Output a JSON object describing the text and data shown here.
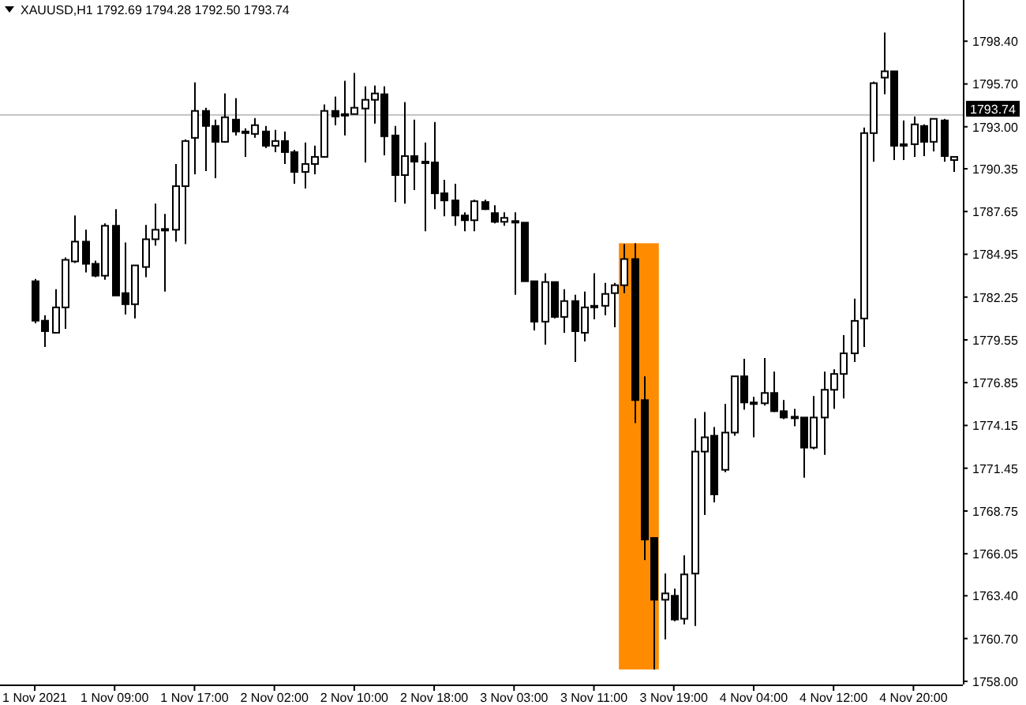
{
  "chart_data": {
    "type": "candlestick",
    "title": "XAUUSD,H1  1792.69 1794.28 1792.50 1793.74",
    "categories": [
      "1 Nov 2021",
      null,
      null,
      null,
      null,
      null,
      null,
      null,
      "1 Nov 09:00",
      null,
      null,
      null,
      null,
      null,
      null,
      null,
      "1 Nov 17:00",
      null,
      null,
      null,
      null,
      null,
      null,
      null,
      "2 Nov 02:00",
      null,
      null,
      null,
      null,
      null,
      null,
      null,
      "2 Nov 10:00",
      null,
      null,
      null,
      null,
      null,
      null,
      null,
      "2 Nov 18:00",
      null,
      null,
      null,
      null,
      null,
      null,
      null,
      "3 Nov 03:00",
      null,
      null,
      null,
      null,
      null,
      null,
      null,
      "3 Nov 11:00",
      null,
      null,
      null,
      null,
      null,
      null,
      null,
      "3 Nov 19:00",
      null,
      null,
      null,
      null,
      null,
      null,
      null,
      "4 Nov 04:00",
      null,
      null,
      null,
      null,
      null,
      null,
      null,
      "4 Nov 12:00",
      null,
      null,
      null,
      null,
      null,
      null,
      null,
      "4 Nov 20:00",
      null,
      null,
      null,
      null
    ],
    "ohlc": [
      [
        1783.25,
        1783.4,
        1780.6,
        1780.76
      ],
      [
        1780.76,
        1781.1,
        1779.1,
        1780.1
      ],
      [
        1780.0,
        1782.75,
        1780.0,
        1781.6
      ],
      [
        1781.6,
        1784.75,
        1780.25,
        1784.6
      ],
      [
        1784.5,
        1787.4,
        1784.4,
        1785.75
      ],
      [
        1785.75,
        1786.5,
        1783.8,
        1784.35
      ],
      [
        1784.35,
        1784.55,
        1783.5,
        1783.6
      ],
      [
        1783.6,
        1786.9,
        1783.35,
        1786.75
      ],
      [
        1786.75,
        1787.8,
        1782.35,
        1782.35
      ],
      [
        1782.5,
        1785.7,
        1781.15,
        1781.8
      ],
      [
        1781.8,
        1784.25,
        1780.9,
        1784.25
      ],
      [
        1784.15,
        1786.8,
        1783.5,
        1785.9
      ],
      [
        1785.9,
        1788.15,
        1785.5,
        1786.5
      ],
      [
        1786.55,
        1787.5,
        1782.6,
        1786.55
      ],
      [
        1786.5,
        1790.65,
        1785.75,
        1789.25
      ],
      [
        1789.25,
        1792.2,
        1785.6,
        1792.1
      ],
      [
        1792.3,
        1795.8,
        1790.0,
        1794.0
      ],
      [
        1794.0,
        1794.2,
        1790.2,
        1793.05
      ],
      [
        1793.05,
        1793.45,
        1789.75,
        1792.05
      ],
      [
        1792.05,
        1795.1,
        1792.0,
        1793.6
      ],
      [
        1793.45,
        1794.8,
        1792.45,
        1792.7
      ],
      [
        1792.7,
        1792.9,
        1791.1,
        1792.7
      ],
      [
        1792.55,
        1793.55,
        1792.3,
        1793.1
      ],
      [
        1792.7,
        1793.05,
        1791.65,
        1791.8
      ],
      [
        1791.8,
        1792.8,
        1791.4,
        1792.1
      ],
      [
        1792.1,
        1792.7,
        1790.65,
        1791.4
      ],
      [
        1791.4,
        1791.55,
        1789.4,
        1790.15
      ],
      [
        1790.15,
        1792.0,
        1789.1,
        1790.65
      ],
      [
        1790.65,
        1791.8,
        1790.0,
        1791.1
      ],
      [
        1791.1,
        1794.4,
        1791.05,
        1794.0
      ],
      [
        1794.0,
        1794.9,
        1793.1,
        1793.65
      ],
      [
        1793.8,
        1795.9,
        1792.45,
        1793.8
      ],
      [
        1793.8,
        1796.4,
        1793.8,
        1794.2
      ],
      [
        1794.15,
        1795.55,
        1790.75,
        1794.7
      ],
      [
        1794.7,
        1795.6,
        1793.2,
        1795.1
      ],
      [
        1795.05,
        1795.55,
        1791.2,
        1792.4
      ],
      [
        1792.45,
        1793.05,
        1788.25,
        1789.95
      ],
      [
        1789.95,
        1794.55,
        1788.15,
        1791.15
      ],
      [
        1791.15,
        1793.45,
        1789.0,
        1790.8
      ],
      [
        1790.8,
        1792.0,
        1786.4,
        1790.8
      ],
      [
        1790.75,
        1793.3,
        1787.8,
        1788.8
      ],
      [
        1788.8,
        1789.65,
        1787.35,
        1788.35
      ],
      [
        1788.35,
        1789.4,
        1786.75,
        1787.4
      ],
      [
        1787.4,
        1787.6,
        1786.4,
        1787.1
      ],
      [
        1787.1,
        1788.4,
        1786.4,
        1788.3
      ],
      [
        1788.25,
        1788.4,
        1787.75,
        1787.8
      ],
      [
        1787.55,
        1788.05,
        1786.9,
        1787.0
      ],
      [
        1787.0,
        1787.6,
        1786.75,
        1787.25
      ],
      [
        1787.05,
        1787.6,
        1782.4,
        1787.05
      ],
      [
        1786.95,
        1786.95,
        1783.25,
        1783.25
      ],
      [
        1783.25,
        1783.25,
        1780.15,
        1780.7
      ],
      [
        1780.7,
        1783.75,
        1779.25,
        1783.2
      ],
      [
        1783.2,
        1783.2,
        1780.9,
        1781.0
      ],
      [
        1781.0,
        1782.75,
        1780.0,
        1782.0
      ],
      [
        1782.0,
        1782.4,
        1778.15,
        1780.1
      ],
      [
        1780.0,
        1782.6,
        1779.45,
        1781.6
      ],
      [
        1781.7,
        1783.75,
        1780.85,
        1781.7
      ],
      [
        1781.7,
        1783.15,
        1781.1,
        1782.45
      ],
      [
        1782.5,
        1783.15,
        1780.35,
        1783.0
      ],
      [
        1783.0,
        1785.6,
        1782.5,
        1784.65
      ],
      [
        1784.65,
        1785.65,
        1774.3,
        1775.75
      ],
      [
        1775.75,
        1777.25,
        1765.65,
        1766.95
      ],
      [
        1767.05,
        1767.05,
        1758.75,
        1763.15
      ],
      [
        1763.15,
        1764.8,
        1760.65,
        1763.55
      ],
      [
        1763.4,
        1763.85,
        1761.8,
        1761.9
      ],
      [
        1761.95,
        1765.95,
        1761.6,
        1764.75
      ],
      [
        1764.8,
        1774.6,
        1761.5,
        1772.5
      ],
      [
        1772.5,
        1775.0,
        1768.5,
        1773.4
      ],
      [
        1773.5,
        1774.05,
        1769.3,
        1769.8
      ],
      [
        1771.35,
        1775.5,
        1771.2,
        1773.7
      ],
      [
        1773.7,
        1777.25,
        1773.5,
        1777.25
      ],
      [
        1777.25,
        1778.35,
        1775.15,
        1775.6
      ],
      [
        1775.6,
        1775.95,
        1773.4,
        1775.6
      ],
      [
        1775.55,
        1778.4,
        1775.4,
        1776.2
      ],
      [
        1776.2,
        1777.55,
        1775.0,
        1775.05
      ],
      [
        1775.05,
        1775.75,
        1774.55,
        1774.65
      ],
      [
        1774.7,
        1775.2,
        1774.1,
        1774.7
      ],
      [
        1774.65,
        1774.65,
        1770.85,
        1772.75
      ],
      [
        1772.75,
        1776.0,
        1772.65,
        1774.65
      ],
      [
        1774.65,
        1777.55,
        1772.3,
        1776.4
      ],
      [
        1776.4,
        1777.7,
        1775.2,
        1777.4
      ],
      [
        1777.4,
        1779.85,
        1775.85,
        1778.7
      ],
      [
        1778.7,
        1782.15,
        1778.15,
        1780.75
      ],
      [
        1780.9,
        1792.95,
        1779.1,
        1792.6
      ],
      [
        1792.6,
        1795.85,
        1790.8,
        1795.75
      ],
      [
        1796.1,
        1798.95,
        1795.05,
        1796.5
      ],
      [
        1796.5,
        1796.5,
        1790.9,
        1791.8
      ],
      [
        1791.9,
        1793.4,
        1790.9,
        1791.9
      ],
      [
        1791.9,
        1793.65,
        1791.1,
        1793.15
      ],
      [
        1793.05,
        1793.15,
        1791.15,
        1792.05
      ],
      [
        1792.05,
        1793.5,
        1791.45,
        1793.5
      ],
      [
        1793.4,
        1793.5,
        1790.8,
        1791.15
      ],
      [
        1790.9,
        1791.15,
        1790.15,
        1791.1
      ]
    ],
    "ylim": [
      1757.8,
      1801.0
    ],
    "yticks": [
      {
        "value": 1798.4,
        "label": "1798.40"
      },
      {
        "value": 1795.7,
        "label": "1795.70"
      },
      {
        "value": 1793.0,
        "label": "1793.00"
      },
      {
        "value": 1790.35,
        "label": "1790.35"
      },
      {
        "value": 1787.65,
        "label": "1787.65"
      },
      {
        "value": 1784.95,
        "label": "1784.95"
      },
      {
        "value": 1782.25,
        "label": "1782.25"
      },
      {
        "value": 1779.55,
        "label": "1779.55"
      },
      {
        "value": 1776.85,
        "label": "1776.85"
      },
      {
        "value": 1774.15,
        "label": "1774.15"
      },
      {
        "value": 1771.45,
        "label": "1771.45"
      },
      {
        "value": 1768.75,
        "label": "1768.75"
      },
      {
        "value": 1766.05,
        "label": "1766.05"
      },
      {
        "value": 1763.4,
        "label": "1763.40"
      },
      {
        "value": 1760.7,
        "label": "1760.70"
      },
      {
        "value": 1758.0,
        "label": "1758.00"
      }
    ],
    "ref_lines": [
      {
        "axis": "y",
        "value": 1793.74,
        "label": "1793.74",
        "color": "#c0c0c0"
      }
    ]
  }
}
